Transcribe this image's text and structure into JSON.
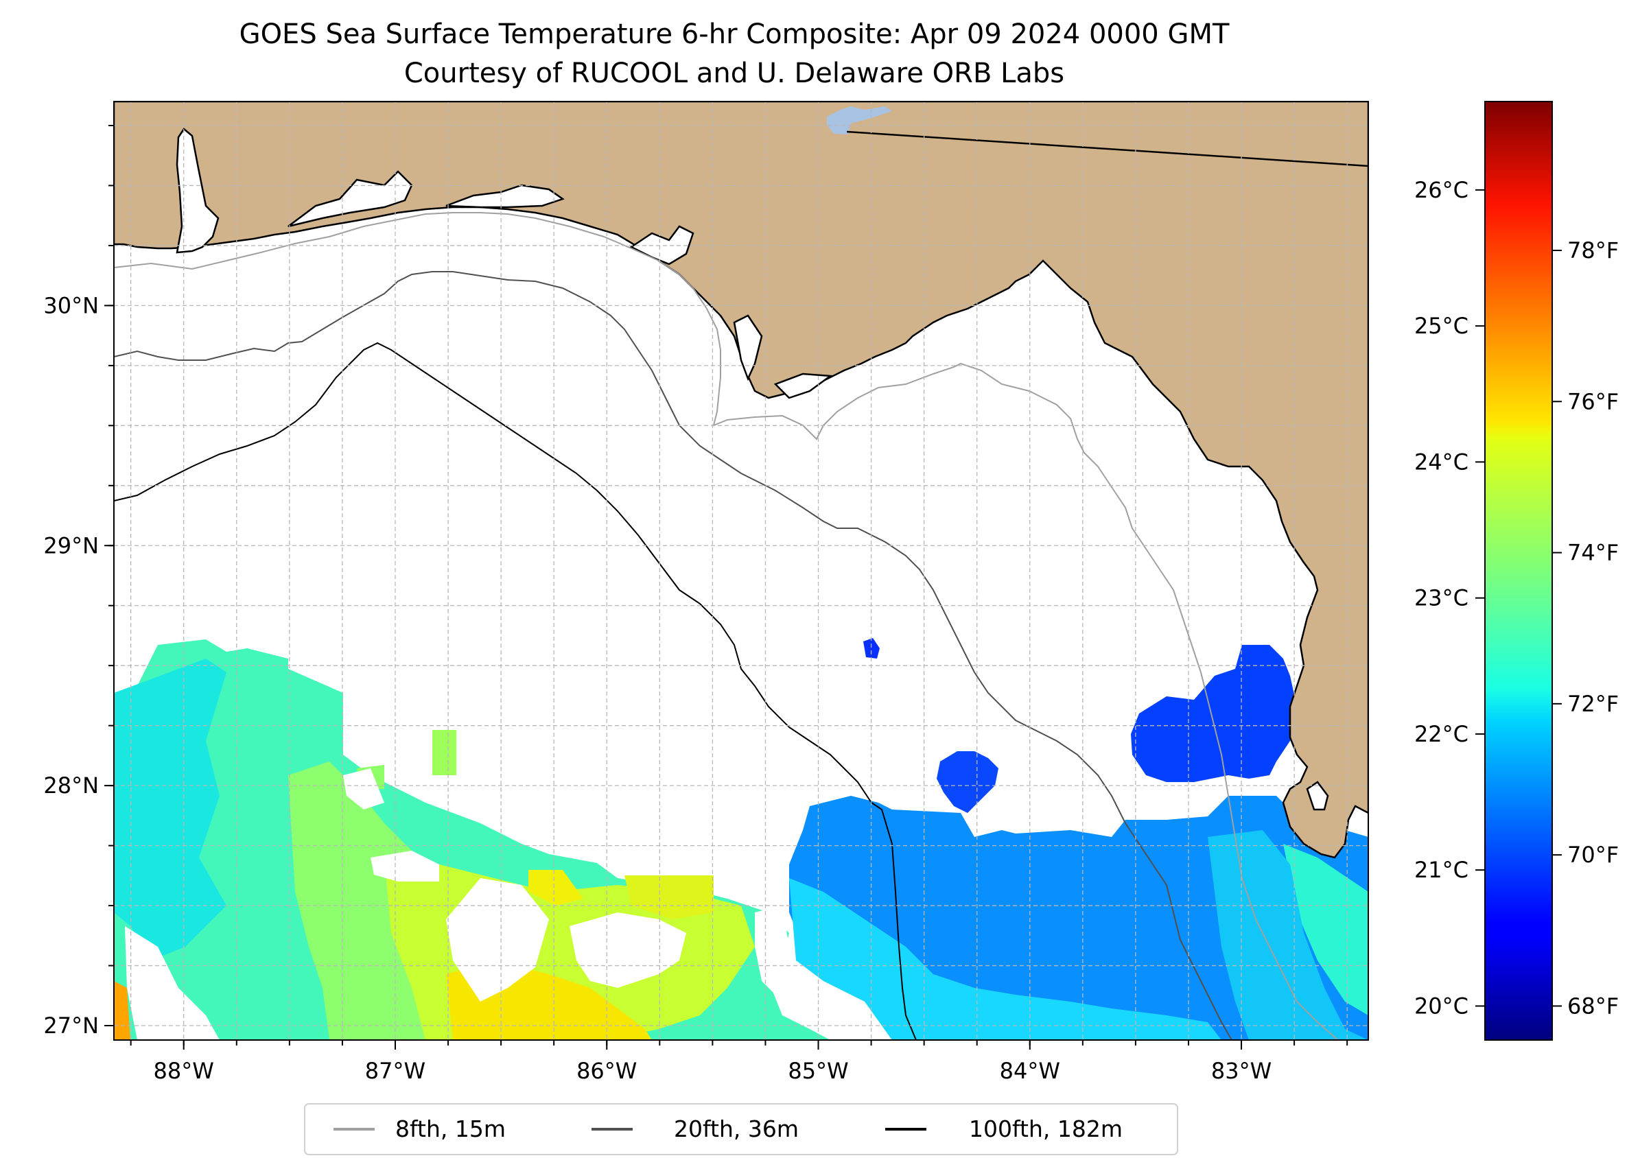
{
  "title": {
    "line1": "GOES Sea Surface Temperature 6-hr Composite: Apr 09 2024 0000 GMT",
    "line2": "Courtesy of RUCOOL and U. Delaware ORB Labs"
  },
  "map": {
    "lon_range": [
      -88.33,
      -82.4
    ],
    "lat_range": [
      26.94,
      30.85
    ],
    "gridlines": "on",
    "land_color": "#d0b38b",
    "lake_color": "#a8c2e2",
    "coastline_color": "#000000",
    "lon_ticks": [
      {
        "value": -88,
        "label": "88°W"
      },
      {
        "value": -87,
        "label": "87°W"
      },
      {
        "value": -86,
        "label": "86°W"
      },
      {
        "value": -85,
        "label": "85°W"
      },
      {
        "value": -84,
        "label": "84°W"
      },
      {
        "value": -83,
        "label": "83°W"
      }
    ],
    "lat_ticks": [
      {
        "value": 30,
        "label": "30°N"
      },
      {
        "value": 29,
        "label": "29°N"
      },
      {
        "value": 28,
        "label": "28°N"
      },
      {
        "value": 27,
        "label": "27°N"
      }
    ]
  },
  "legend": {
    "placement": "bottom-center",
    "entries": [
      {
        "label": "8fth, 15m",
        "color": "#a0a0a0"
      },
      {
        "label": "20fth, 36m",
        "color": "#505050"
      },
      {
        "label": "100fth, 182m",
        "color": "#000000"
      }
    ]
  },
  "colorbar": {
    "colormap": "jet",
    "celsius_range": [
      19.75,
      26.65
    ],
    "celsius_ticks": [
      {
        "value": 20,
        "label": "20°C"
      },
      {
        "value": 21,
        "label": "21°C"
      },
      {
        "value": 22,
        "label": "22°C"
      },
      {
        "value": 23,
        "label": "23°C"
      },
      {
        "value": 24,
        "label": "24°C"
      },
      {
        "value": 25,
        "label": "25°C"
      },
      {
        "value": 26,
        "label": "26°C"
      }
    ],
    "fahrenheit_ticks": [
      {
        "value": 68,
        "label": "68°F"
      },
      {
        "value": 70,
        "label": "70°F"
      },
      {
        "value": 72,
        "label": "72°F"
      },
      {
        "value": 74,
        "label": "74°F"
      },
      {
        "value": 76,
        "label": "76°F"
      },
      {
        "value": 78,
        "label": "78°F"
      }
    ]
  },
  "chart_data": {
    "type": "heatmap",
    "title": "GOES Sea Surface Temperature 6-hr Composite: Apr 09 2024 0000 GMT",
    "subtitle": "Courtesy of RUCOOL and U. Delaware ORB Labs",
    "xlim": [
      -88.33,
      -82.4
    ],
    "ylim": [
      26.94,
      30.85
    ],
    "value_units": "°C",
    "sst_patches": [
      {
        "lon": -87.9,
        "lat": 28.2,
        "value_c": 22.6
      },
      {
        "lon": -87.5,
        "lat": 27.9,
        "value_c": 22.8
      },
      {
        "lon": -88.1,
        "lat": 27.6,
        "value_c": 22.5
      },
      {
        "lon": -87.0,
        "lat": 27.5,
        "value_c": 23.4
      },
      {
        "lon": -86.6,
        "lat": 27.5,
        "value_c": 23.8
      },
      {
        "lon": -86.3,
        "lat": 27.1,
        "value_c": 24.6
      },
      {
        "lon": -85.8,
        "lat": 27.2,
        "value_c": 24.0
      },
      {
        "lon": -86.2,
        "lat": 27.5,
        "value_c": 24.3
      },
      {
        "lon": -85.5,
        "lat": 27.3,
        "value_c": 23.2
      },
      {
        "lon": -85.0,
        "lat": 27.5,
        "value_c": 22.1
      },
      {
        "lon": -84.3,
        "lat": 27.6,
        "value_c": 21.4
      },
      {
        "lon": -83.5,
        "lat": 27.5,
        "value_c": 21.6
      },
      {
        "lon": -82.9,
        "lat": 27.4,
        "value_c": 22.0
      },
      {
        "lon": -83.3,
        "lat": 28.2,
        "value_c": 20.7
      },
      {
        "lon": -84.3,
        "lat": 28.0,
        "value_c": 20.8
      },
      {
        "lon": -84.75,
        "lat": 28.58,
        "value_c": 20.7
      },
      {
        "lon": -88.2,
        "lat": 27.1,
        "value_c": 25.3
      }
    ]
  }
}
